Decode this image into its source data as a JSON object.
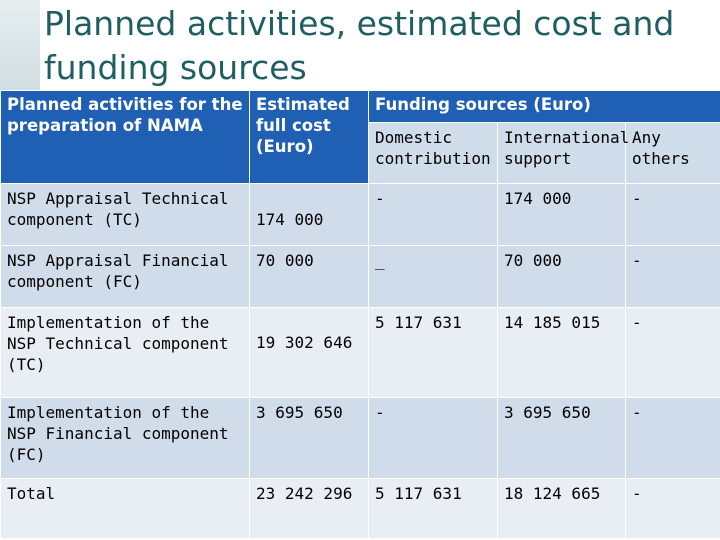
{
  "title": "Planned activities, estimated cost and\nfunding sources",
  "table": {
    "headers": {
      "activities": "Planned activities for the preparation of NAMA",
      "cost": "Estimated full cost (Euro)",
      "funding": "Funding sources (Euro)",
      "domestic": "Domestic contribution",
      "international": "International support",
      "others": "Any others"
    },
    "rows": [
      {
        "activity": "NSP Appraisal Technical component (TC)",
        "cost": "174 000",
        "domestic": "-",
        "international": "174 000",
        "others": "-"
      },
      {
        "activity": "NSP Appraisal Financial component (FC)",
        "cost": "70 000",
        "domestic": "_",
        "international": "70 000",
        "others": "-"
      },
      {
        "activity": "Implementation of the NSP Technical component (TC)",
        "cost": "19 302 646",
        "domestic": "5 117 631",
        "international": "14 185 015",
        "others": "-"
      },
      {
        "activity": "Implementation of the NSP Financial component (FC)",
        "cost": "3 695 650",
        "domestic": "-",
        "international": "3 695 650",
        "others": "-"
      },
      {
        "activity": "Total",
        "cost": "23 242 296",
        "domestic": "5 117 631",
        "international": "18 124 665",
        "others": "-"
      }
    ]
  }
}
